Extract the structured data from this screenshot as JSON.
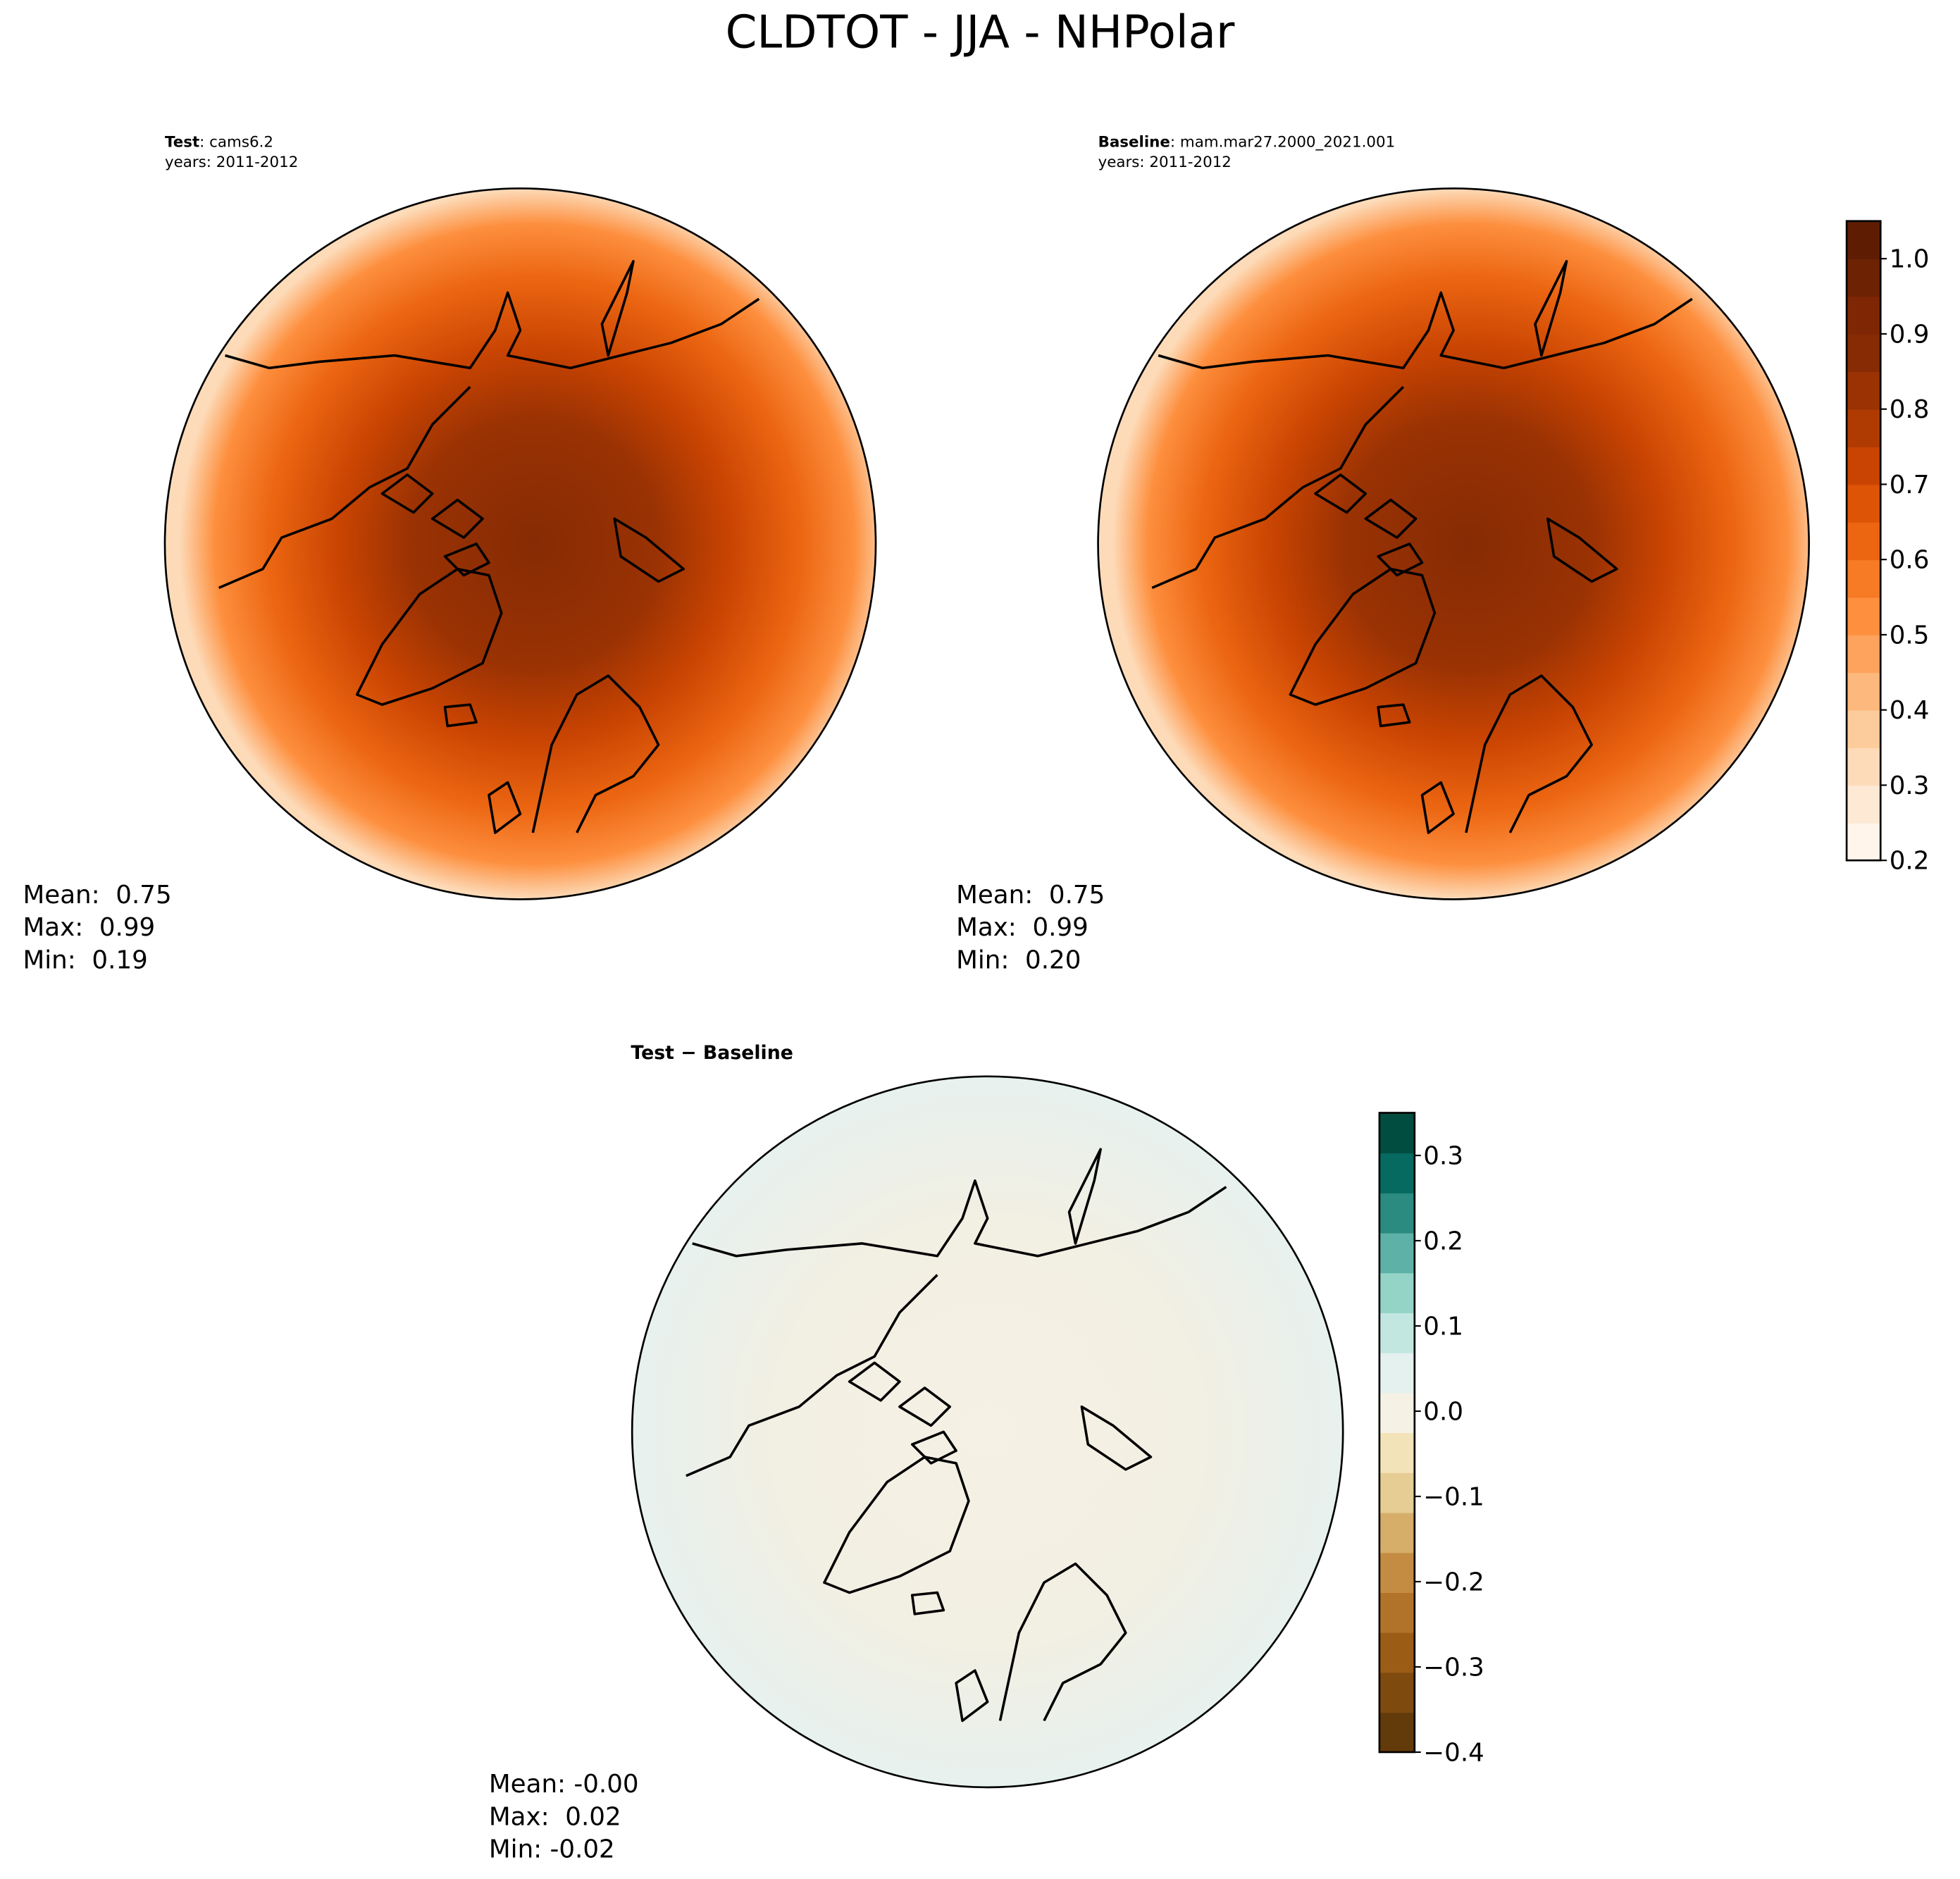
{
  "title": "CLDTOT - JJA - NHPolar",
  "panels": [
    {
      "label_bold": "Test",
      "label_rest": ": cams6.2",
      "years": "years: 2011-2012",
      "stats": [
        "Mean:  0.75",
        "Max:  0.99",
        "Min:  0.19"
      ]
    },
    {
      "label_bold": "Baseline",
      "label_rest": ": mam.mar27.2000_2021.001",
      "years": "years: 2011-2012",
      "stats": [
        "Mean:  0.75",
        "Max:  0.99",
        "Min:  0.20"
      ]
    },
    {
      "label_bold": "Test − Baseline",
      "stats": [
        "Mean: -0.00",
        "Max:  0.02",
        "Min: -0.02"
      ]
    }
  ],
  "colorbars": [
    {
      "lim": [
        0.2,
        1.05
      ],
      "ticks": [
        0.2,
        0.3,
        0.4,
        0.5,
        0.6,
        0.7,
        0.8,
        0.9,
        {
          "value": 1,
          "label": "1.0"
        }
      ],
      "colors": [
        "#fff5eb",
        "#fee9d4",
        "#fddbb9",
        "#fdcc9c",
        "#fdb87d",
        "#fda35d",
        "#fd8f3e",
        "#f77a24",
        "#ec6612",
        "#dd5406",
        "#c94402",
        "#b03b02",
        "#9a3203",
        "#862b04",
        "#7f2704",
        "#6d2204",
        "#5e1d03"
      ]
    },
    {
      "lim": [
        -0.4,
        0.35
      ],
      "ticks": [
        {
          "value": -0.4,
          "label": "−0.4"
        },
        {
          "value": -0.3,
          "label": "−0.3"
        },
        {
          "value": -0.2,
          "label": "−0.2"
        },
        {
          "value": -0.1,
          "label": "−0.1"
        },
        {
          "value": 0,
          "label": "0.0"
        },
        0.1,
        0.2,
        0.3
      ],
      "colors": [
        "#633a0a",
        "#7e4a0e",
        "#9b5c16",
        "#b1722a",
        "#c48c42",
        "#d6ae6a",
        "#e6cd94",
        "#f3e3b8",
        "#f5f1e4",
        "#e4f1ef",
        "#c2e7e1",
        "#93d4c6",
        "#5db1a6",
        "#2b8b80",
        "#076a60",
        "#014d40"
      ]
    }
  ]
}
